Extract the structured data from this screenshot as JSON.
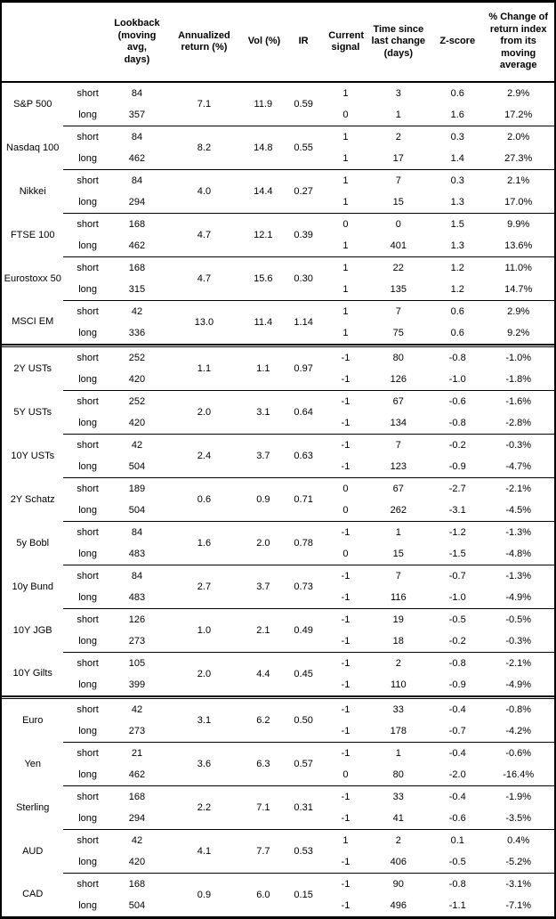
{
  "headers": {
    "asset": "",
    "side": "",
    "lookback": "Lookback (moving avg, days)",
    "annualized_return": "Annualized return (%)",
    "vol": "Vol (%)",
    "ir": "IR",
    "current_signal": "Current signal",
    "time_since": "Time since last change (days)",
    "z_score": "Z-score",
    "pct_change": "% Change of return index from its moving average"
  },
  "sections": [
    {
      "assets": [
        {
          "name": "S&P 500",
          "annualized_return": "7.1",
          "vol": "11.9",
          "ir": "0.59",
          "rows": [
            {
              "side": "short",
              "lookback": "84",
              "signal": "1",
              "time_since": "3",
              "z_score": "0.6",
              "pct_change": "2.9%"
            },
            {
              "side": "long",
              "lookback": "357",
              "signal": "0",
              "time_since": "1",
              "z_score": "1.6",
              "pct_change": "17.2%"
            }
          ]
        },
        {
          "name": "Nasdaq 100",
          "annualized_return": "8.2",
          "vol": "14.8",
          "ir": "0.55",
          "rows": [
            {
              "side": "short",
              "lookback": "84",
              "signal": "1",
              "time_since": "2",
              "z_score": "0.3",
              "pct_change": "2.0%"
            },
            {
              "side": "long",
              "lookback": "462",
              "signal": "1",
              "time_since": "17",
              "z_score": "1.4",
              "pct_change": "27.3%"
            }
          ]
        },
        {
          "name": "Nikkei",
          "annualized_return": "4.0",
          "vol": "14.4",
          "ir": "0.27",
          "rows": [
            {
              "side": "short",
              "lookback": "84",
              "signal": "1",
              "time_since": "7",
              "z_score": "0.3",
              "pct_change": "2.1%"
            },
            {
              "side": "long",
              "lookback": "294",
              "signal": "1",
              "time_since": "15",
              "z_score": "1.3",
              "pct_change": "17.0%"
            }
          ]
        },
        {
          "name": "FTSE 100",
          "annualized_return": "4.7",
          "vol": "12.1",
          "ir": "0.39",
          "rows": [
            {
              "side": "short",
              "lookback": "168",
              "signal": "0",
              "time_since": "0",
              "z_score": "1.5",
              "pct_change": "9.9%"
            },
            {
              "side": "long",
              "lookback": "462",
              "signal": "1",
              "time_since": "401",
              "z_score": "1.3",
              "pct_change": "13.6%"
            }
          ]
        },
        {
          "name": "Eurostoxx 50",
          "annualized_return": "4.7",
          "vol": "15.6",
          "ir": "0.30",
          "rows": [
            {
              "side": "short",
              "lookback": "168",
              "signal": "1",
              "time_since": "22",
              "z_score": "1.2",
              "pct_change": "11.0%"
            },
            {
              "side": "long",
              "lookback": "315",
              "signal": "1",
              "time_since": "135",
              "z_score": "1.2",
              "pct_change": "14.7%"
            }
          ]
        },
        {
          "name": "MSCI EM",
          "annualized_return": "13.0",
          "vol": "11.4",
          "ir": "1.14",
          "rows": [
            {
              "side": "short",
              "lookback": "42",
              "signal": "1",
              "time_since": "7",
              "z_score": "0.6",
              "pct_change": "2.9%"
            },
            {
              "side": "long",
              "lookback": "336",
              "signal": "1",
              "time_since": "75",
              "z_score": "0.6",
              "pct_change": "9.2%"
            }
          ]
        }
      ]
    },
    {
      "assets": [
        {
          "name": "2Y USTs",
          "annualized_return": "1.1",
          "vol": "1.1",
          "ir": "0.97",
          "rows": [
            {
              "side": "short",
              "lookback": "252",
              "signal": "-1",
              "time_since": "80",
              "z_score": "-0.8",
              "pct_change": "-1.0%"
            },
            {
              "side": "long",
              "lookback": "420",
              "signal": "-1",
              "time_since": "126",
              "z_score": "-1.0",
              "pct_change": "-1.8%"
            }
          ]
        },
        {
          "name": "5Y USTs",
          "annualized_return": "2.0",
          "vol": "3.1",
          "ir": "0.64",
          "rows": [
            {
              "side": "short",
              "lookback": "252",
              "signal": "-1",
              "time_since": "67",
              "z_score": "-0.6",
              "pct_change": "-1.6%"
            },
            {
              "side": "long",
              "lookback": "420",
              "signal": "-1",
              "time_since": "134",
              "z_score": "-0.8",
              "pct_change": "-2.8%"
            }
          ]
        },
        {
          "name": "10Y USTs",
          "annualized_return": "2.4",
          "vol": "3.7",
          "ir": "0.63",
          "rows": [
            {
              "side": "short",
              "lookback": "42",
              "signal": "-1",
              "time_since": "7",
              "z_score": "-0.2",
              "pct_change": "-0.3%"
            },
            {
              "side": "long",
              "lookback": "504",
              "signal": "-1",
              "time_since": "123",
              "z_score": "-0.9",
              "pct_change": "-4.7%"
            }
          ]
        },
        {
          "name": "2Y Schatz",
          "annualized_return": "0.6",
          "vol": "0.9",
          "ir": "0.71",
          "rows": [
            {
              "side": "short",
              "lookback": "189",
              "signal": "0",
              "time_since": "67",
              "z_score": "-2.7",
              "pct_change": "-2.1%"
            },
            {
              "side": "long",
              "lookback": "504",
              "signal": "0",
              "time_since": "262",
              "z_score": "-3.1",
              "pct_change": "-4.5%"
            }
          ]
        },
        {
          "name": "5y Bobl",
          "annualized_return": "1.6",
          "vol": "2.0",
          "ir": "0.78",
          "rows": [
            {
              "side": "short",
              "lookback": "84",
              "signal": "-1",
              "time_since": "1",
              "z_score": "-1.2",
              "pct_change": "-1.3%"
            },
            {
              "side": "long",
              "lookback": "483",
              "signal": "0",
              "time_since": "15",
              "z_score": "-1.5",
              "pct_change": "-4.8%"
            }
          ]
        },
        {
          "name": "10y Bund",
          "annualized_return": "2.7",
          "vol": "3.7",
          "ir": "0.73",
          "rows": [
            {
              "side": "short",
              "lookback": "84",
              "signal": "-1",
              "time_since": "7",
              "z_score": "-0.7",
              "pct_change": "-1.3%"
            },
            {
              "side": "long",
              "lookback": "483",
              "signal": "-1",
              "time_since": "116",
              "z_score": "-1.0",
              "pct_change": "-4.9%"
            }
          ]
        },
        {
          "name": "10Y JGB",
          "annualized_return": "1.0",
          "vol": "2.1",
          "ir": "0.49",
          "rows": [
            {
              "side": "short",
              "lookback": "126",
              "signal": "-1",
              "time_since": "19",
              "z_score": "-0.5",
              "pct_change": "-0.5%"
            },
            {
              "side": "long",
              "lookback": "273",
              "signal": "-1",
              "time_since": "18",
              "z_score": "-0.2",
              "pct_change": "-0.3%"
            }
          ]
        },
        {
          "name": "10Y Gilts",
          "annualized_return": "2.0",
          "vol": "4.4",
          "ir": "0.45",
          "rows": [
            {
              "side": "short",
              "lookback": "105",
              "signal": "-1",
              "time_since": "2",
              "z_score": "-0.8",
              "pct_change": "-2.1%"
            },
            {
              "side": "long",
              "lookback": "399",
              "signal": "-1",
              "time_since": "110",
              "z_score": "-0.9",
              "pct_change": "-4.9%"
            }
          ]
        }
      ]
    },
    {
      "assets": [
        {
          "name": "Euro",
          "annualized_return": "3.1",
          "vol": "6.2",
          "ir": "0.50",
          "rows": [
            {
              "side": "short",
              "lookback": "42",
              "signal": "-1",
              "time_since": "33",
              "z_score": "-0.4",
              "pct_change": "-0.8%"
            },
            {
              "side": "long",
              "lookback": "273",
              "signal": "-1",
              "time_since": "178",
              "z_score": "-0.7",
              "pct_change": "-4.2%"
            }
          ]
        },
        {
          "name": "Yen",
          "annualized_return": "3.6",
          "vol": "6.3",
          "ir": "0.57",
          "rows": [
            {
              "side": "short",
              "lookback": "21",
              "signal": "-1",
              "time_since": "1",
              "z_score": "-0.4",
              "pct_change": "-0.6%"
            },
            {
              "side": "long",
              "lookback": "462",
              "signal": "0",
              "time_since": "80",
              "z_score": "-2.0",
              "pct_change": "-16.4%"
            }
          ]
        },
        {
          "name": "Sterling",
          "annualized_return": "2.2",
          "vol": "7.1",
          "ir": "0.31",
          "rows": [
            {
              "side": "short",
              "lookback": "168",
              "signal": "-1",
              "time_since": "33",
              "z_score": "-0.4",
              "pct_change": "-1.9%"
            },
            {
              "side": "long",
              "lookback": "294",
              "signal": "-1",
              "time_since": "41",
              "z_score": "-0.6",
              "pct_change": "-3.5%"
            }
          ]
        },
        {
          "name": "AUD",
          "annualized_return": "4.1",
          "vol": "7.7",
          "ir": "0.53",
          "rows": [
            {
              "side": "short",
              "lookback": "42",
              "signal": "1",
              "time_since": "2",
              "z_score": "0.1",
              "pct_change": "0.4%"
            },
            {
              "side": "long",
              "lookback": "420",
              "signal": "-1",
              "time_since": "406",
              "z_score": "-0.5",
              "pct_change": "-5.2%"
            }
          ]
        },
        {
          "name": "CAD",
          "annualized_return": "0.9",
          "vol": "6.0",
          "ir": "0.15",
          "rows": [
            {
              "side": "short",
              "lookback": "168",
              "signal": "-1",
              "time_since": "90",
              "z_score": "-0.8",
              "pct_change": "-3.1%"
            },
            {
              "side": "long",
              "lookback": "504",
              "signal": "-1",
              "time_since": "496",
              "z_score": "-1.1",
              "pct_change": "-7.1%"
            }
          ]
        }
      ]
    }
  ]
}
